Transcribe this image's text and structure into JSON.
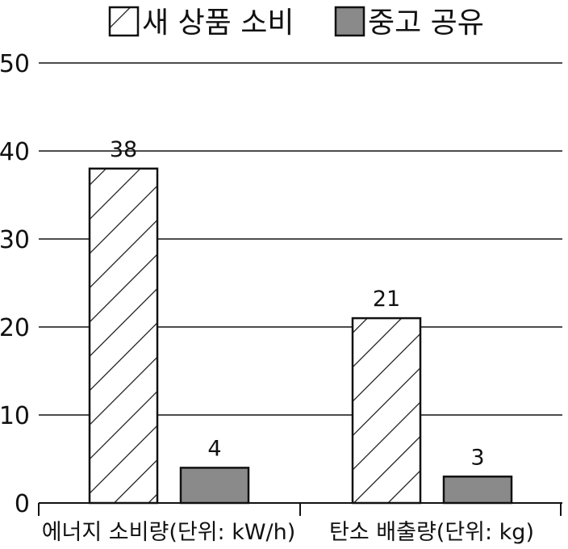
{
  "chart_data": {
    "type": "bar",
    "categories": [
      "에너지 소비량(단위: kW/h)",
      "탄소 배출량(단위: kg)"
    ],
    "series": [
      {
        "name": "새 상품 소비",
        "values": [
          38,
          21
        ],
        "pattern": "hatch",
        "color": "#ffffff"
      },
      {
        "name": "중고 공유",
        "values": [
          4,
          3
        ],
        "pattern": "solid",
        "color": "#8a8a8a"
      }
    ],
    "data_labels": [
      [
        "38",
        "21"
      ],
      [
        "4",
        "3"
      ]
    ],
    "yticks": [
      0,
      10,
      20,
      30,
      40,
      50
    ],
    "ylim": [
      0,
      50
    ],
    "grid": true,
    "legend_position": "top",
    "title": "",
    "xlabel": "",
    "ylabel": ""
  }
}
